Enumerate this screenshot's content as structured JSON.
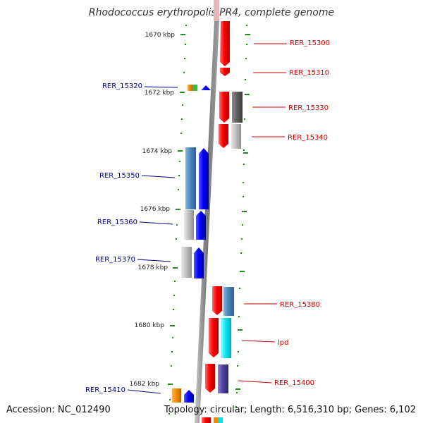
{
  "title": "Rhodococcus erythropolis PR4, complete genome",
  "footer": {
    "accession": "Accession: NC_012490",
    "topology": "Topology: circular; Length: 6,516,310 bp; Genes: 6,102"
  },
  "scale_labels": [
    "1670 kbp",
    "1672 kbp",
    "1674 kbp",
    "1676 kbp",
    "1678 kbp",
    "1680 kbp",
    "1682 kbp"
  ],
  "genes_left": [
    "RER_15320",
    "RER_15350",
    "RER_15360",
    "RER_15370",
    "RER_15410"
  ],
  "genes_right": [
    "RER_15300",
    "RER_15310",
    "RER_15330",
    "RER_15340",
    "RER_15380",
    "lpd",
    "RER_15400"
  ],
  "colors": {
    "left_label": "#00008b",
    "right_label": "#cc0000",
    "forward_strand": "#0000ff",
    "reverse_strand": "#ff0000",
    "tick": "#1a8a1a",
    "axis": "#888888"
  }
}
